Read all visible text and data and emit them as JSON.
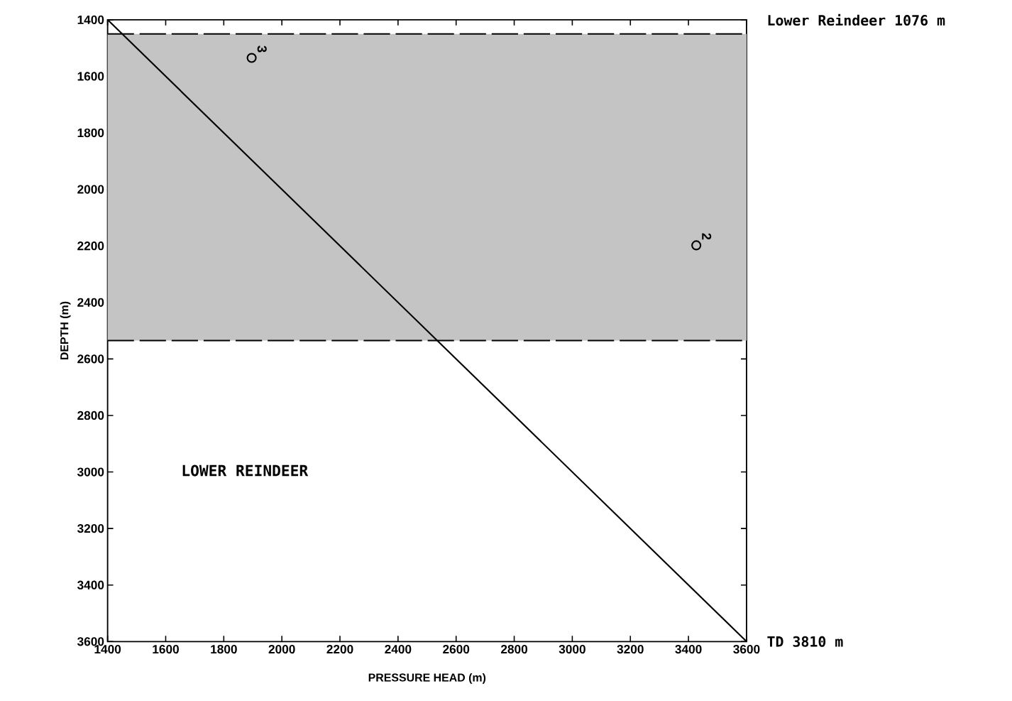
{
  "chart_data": {
    "type": "line",
    "xlabel": "PRESSURE HEAD (m)",
    "ylabel": "DEPTH (m)",
    "xlim": [
      1400,
      3600
    ],
    "ylim": [
      3600,
      1400
    ],
    "xticks": [
      1400,
      1600,
      1800,
      2000,
      2200,
      2400,
      2600,
      2800,
      3000,
      3200,
      3400,
      3600
    ],
    "yticks": [
      1400,
      1600,
      1800,
      2000,
      2200,
      2400,
      2600,
      2800,
      3000,
      3200,
      3400,
      3600
    ],
    "series": [
      {
        "x": [
          1400,
          3600
        ],
        "values": [
          1400,
          3600
        ],
        "color": "#000000"
      },
      {
        "type": "scatter",
        "x": [
          1896,
          3427
        ],
        "values": [
          1535,
          2198
        ],
        "color": "#000000",
        "marker": "circle"
      }
    ],
    "bands": [
      {
        "axis": "y",
        "from": 1450,
        "to": 2535,
        "color": "#c4c4c4"
      }
    ],
    "ref_lines": [
      {
        "axis": "y",
        "value": 1450,
        "line_style": "dashed"
      },
      {
        "axis": "y",
        "value": 2535,
        "line_style": "dashed"
      }
    ],
    "annotations": [
      {
        "text": "3",
        "x": 1896,
        "y": 1535
      },
      {
        "text": "2",
        "x": 3427,
        "y": 2198
      },
      "Lower Reindeer 1076 m",
      "TD 3810 m",
      "LOWER REINDEER"
    ]
  }
}
